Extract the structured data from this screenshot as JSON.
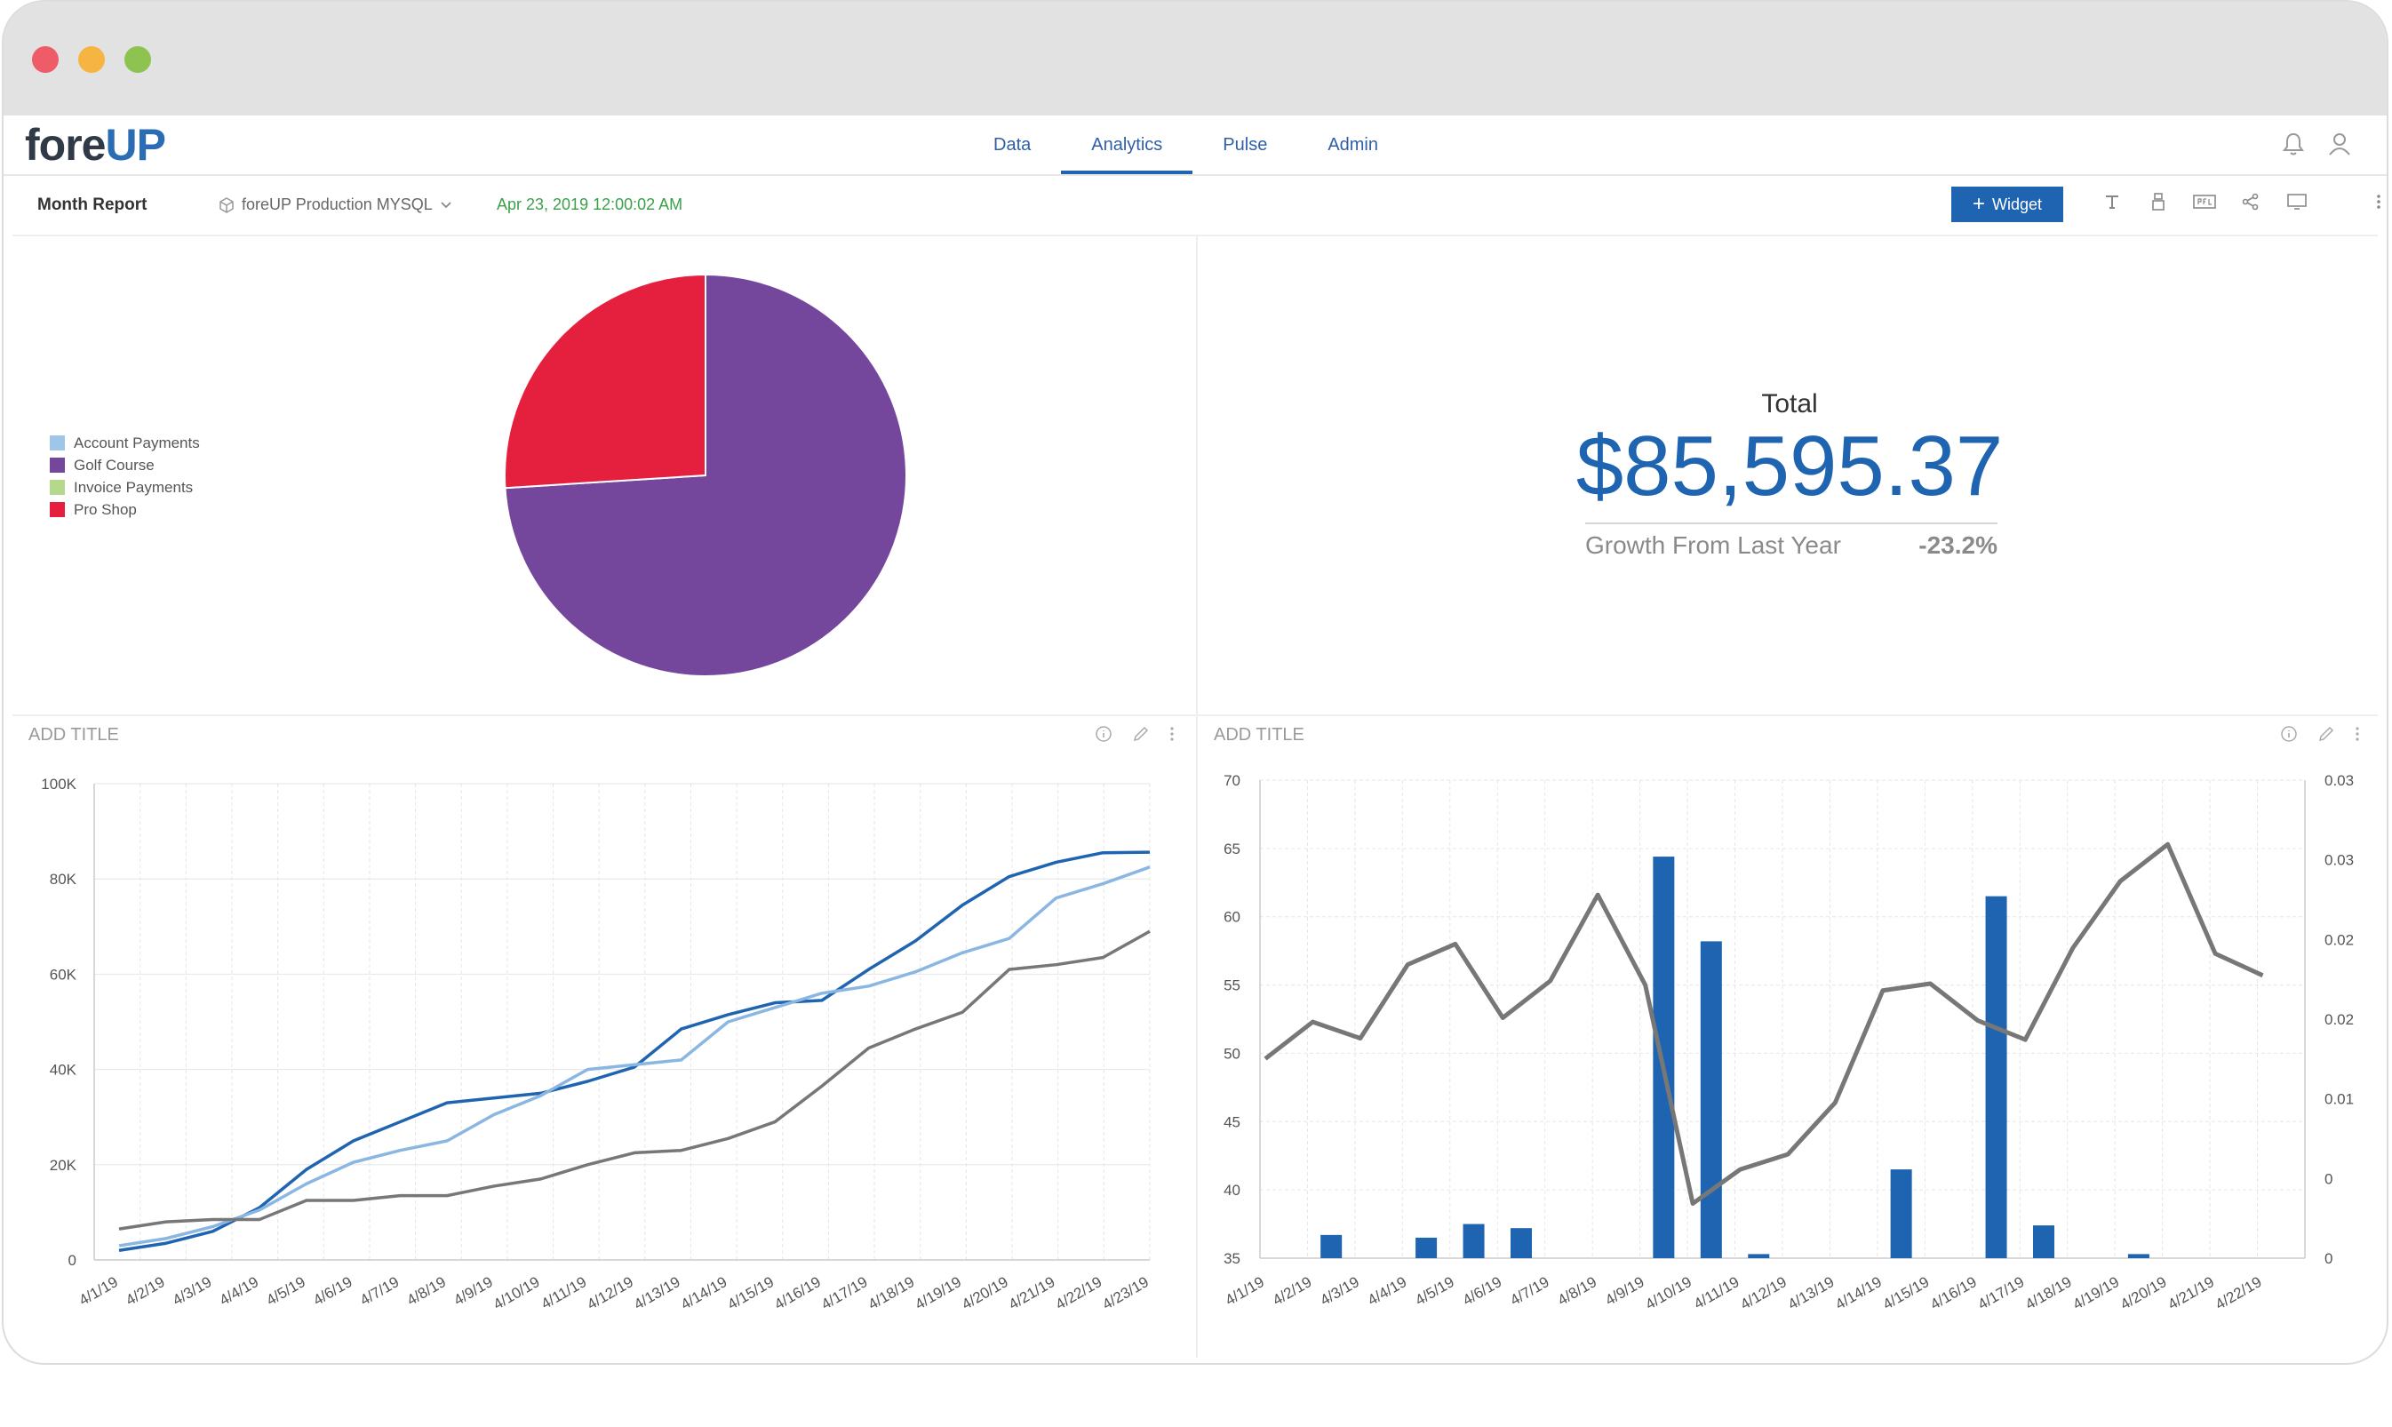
{
  "nav": {
    "logo_part1": "fore",
    "logo_part2": "UP",
    "tabs": [
      {
        "label": "Data"
      },
      {
        "label": "Analytics"
      },
      {
        "label": "Pulse"
      },
      {
        "label": "Admin"
      }
    ],
    "active_tab": "Analytics"
  },
  "toolbar": {
    "report_title": "Month Report",
    "datasource": "foreUP Production MYSQL",
    "timestamp": "Apr 23, 2019 12:00:02 AM",
    "widget_button": "Widget"
  },
  "colors": {
    "accent": "#1f64b0",
    "account_payments": "#9fc5e8",
    "golf_course": "#74469c",
    "invoice_payments": "#b5d98c",
    "pro_shop": "#e5203e",
    "timestamp_green": "#3aa14b"
  },
  "kpi": {
    "label": "Total",
    "value": "$85,595.37",
    "growth_label": "Growth From Last Year",
    "growth_value": "-23.2%"
  },
  "panels": {
    "line_title": "ADD TITLE",
    "bar_title": "ADD TITLE"
  },
  "chart_data": [
    {
      "type": "pie",
      "legend": [
        "Account Payments",
        "Golf Course",
        "Invoice Payments",
        "Pro Shop"
      ],
      "slices": [
        {
          "name": "Golf Course",
          "value": 74.0,
          "color": "#74469c"
        },
        {
          "name": "Pro Shop",
          "value": 26.0,
          "color": "#e5203e"
        }
      ]
    },
    {
      "type": "line",
      "x": [
        "4/1/19",
        "4/2/19",
        "4/3/19",
        "4/4/19",
        "4/5/19",
        "4/6/19",
        "4/7/19",
        "4/8/19",
        "4/9/19",
        "4/10/19",
        "4/11/19",
        "4/12/19",
        "4/13/19",
        "4/14/19",
        "4/15/19",
        "4/16/19",
        "4/17/19",
        "4/18/19",
        "4/19/19",
        "4/20/19",
        "4/21/19",
        "4/22/19",
        "4/23/19"
      ],
      "ylim": [
        0,
        100000
      ],
      "yticks": [
        "0",
        "20K",
        "40K",
        "60K",
        "80K",
        "100K"
      ],
      "series": [
        {
          "color": "#1f64b0",
          "values": [
            2000,
            3500,
            6000,
            11000,
            19000,
            25000,
            29000,
            33000,
            34000,
            35000,
            37500,
            40500,
            48500,
            51500,
            54000,
            54500,
            61000,
            67000,
            74500,
            80500,
            83500,
            85500,
            85600
          ]
        },
        {
          "color": "#8ab7e2",
          "values": [
            3000,
            4500,
            7000,
            10500,
            16000,
            20500,
            23000,
            25000,
            30500,
            34500,
            40000,
            41000,
            42000,
            50000,
            53000,
            56000,
            57500,
            60500,
            64500,
            67500,
            76000,
            79000,
            82500
          ]
        },
        {
          "color": "#777777",
          "values": [
            6500,
            8000,
            8500,
            8500,
            12500,
            12500,
            13500,
            13500,
            15500,
            17000,
            20000,
            22500,
            23000,
            25500,
            29000,
            36500,
            44500,
            48500,
            52000,
            61000,
            62000,
            63500,
            69000
          ]
        }
      ]
    },
    {
      "type": "bar",
      "x": [
        "4/1/19",
        "4/2/19",
        "4/3/19",
        "4/4/19",
        "4/5/19",
        "4/6/19",
        "4/7/19",
        "4/8/19",
        "4/9/19",
        "4/10/19",
        "4/11/19",
        "4/12/19",
        "4/13/19",
        "4/14/19",
        "4/15/19",
        "4/16/19",
        "4/17/19",
        "4/18/19",
        "4/19/19",
        "4/20/19",
        "4/21/19",
        "4/22/19"
      ],
      "ylim": [
        35,
        70
      ],
      "yticks": [
        "35",
        "40",
        "45",
        "50",
        "55",
        "60",
        "65",
        "70"
      ],
      "y2ticks": [
        "0",
        "0",
        "0.01",
        "0.02",
        "0.02",
        "0.03",
        "0.03"
      ],
      "bar_color": "#1f64b0",
      "bars": [
        35,
        36.7,
        35,
        36.5,
        37.5,
        37.2,
        35,
        35,
        64.4,
        58.2,
        35.3,
        35,
        35,
        41.5,
        35,
        61.5,
        37.4,
        35,
        35.3,
        35,
        35,
        35
      ],
      "line_color": "#777777",
      "line_values": [
        49.6,
        52.3,
        51.1,
        56.5,
        58,
        52.6,
        55.3,
        61.6,
        55,
        39,
        41.5,
        42.6,
        46.4,
        54.6,
        55.1,
        52.4,
        51,
        57.7,
        62.6,
        65.3,
        57.3,
        55.7
      ]
    }
  ]
}
